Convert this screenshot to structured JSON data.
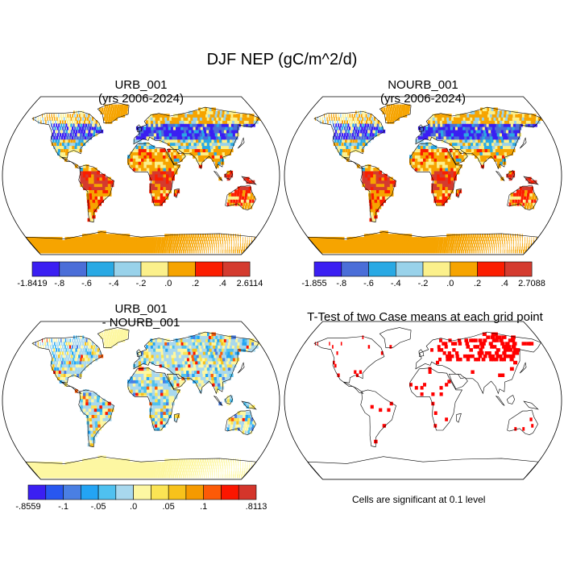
{
  "title": "DJF NEP (gC/m^2/d)",
  "panels": [
    {
      "id": "urb",
      "title": [
        "URB_001",
        "(yrs 2006-2024)"
      ]
    },
    {
      "id": "nourb",
      "title": [
        "NOURB_001",
        "(yrs 2006-2024)"
      ]
    },
    {
      "id": "diff",
      "title": [
        "URB_001",
        "- NOURB_001"
      ]
    },
    {
      "id": "ttest",
      "title": [
        "T-Test of two Case means at each grid point"
      ]
    }
  ],
  "colorbars": [
    {
      "id": "cb-urb",
      "colors": [
        "#3b1ff2",
        "#4b6ed8",
        "#29a9e4",
        "#99d2ea",
        "#fbf08b",
        "#f6a400",
        "#fb1d00",
        "#d43b2f"
      ],
      "labels": [
        "-1.8419",
        "-.8",
        "-.6",
        "-.4",
        "-.2",
        ".0",
        ".2",
        ".4",
        "2.6114"
      ]
    },
    {
      "id": "cb-nourb",
      "colors": [
        "#3b1ff2",
        "#4b6ed8",
        "#29a9e4",
        "#99d2ea",
        "#fbf08b",
        "#f6a400",
        "#fb1d00",
        "#d43b2f"
      ],
      "labels": [
        "-1.855",
        "-.8",
        "-.6",
        "-.4",
        "-.2",
        ".0",
        ".2",
        ".4",
        "2.7088"
      ]
    },
    {
      "id": "cb-diff",
      "colors": [
        "#3b1ff2",
        "#2857f0",
        "#4a7fe3",
        "#23a4f4",
        "#4fc1f0",
        "#a8d8ee",
        "#fdf7a2",
        "#fbe454",
        "#f7c21b",
        "#f59a00",
        "#fc5a07",
        "#fb1600",
        "#d4352b"
      ],
      "labels": [
        "-.8559",
        "-.1",
        "-.05",
        ".0",
        ".05",
        ".1",
        ".8113"
      ]
    }
  ],
  "note": "Cells are significant at 0.1 level",
  "map_colors": {
    "ocean": "#ffffff",
    "coast": "#000000",
    "signif": "#ff0000"
  }
}
